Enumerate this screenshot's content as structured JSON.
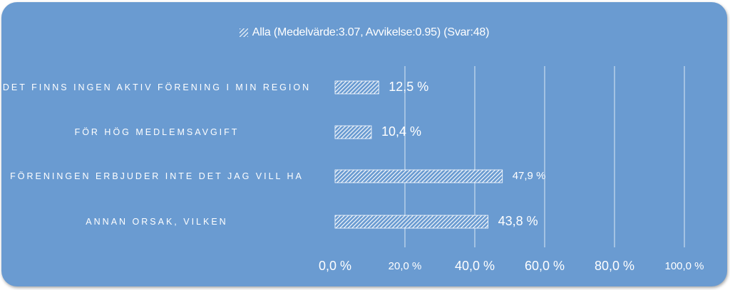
{
  "chart_data": {
    "type": "bar",
    "orientation": "horizontal",
    "categories": [
      "DET FINNS INGEN AKTIV FÖRENING I MIN REGION",
      "FÖR HÖG MEDLEMSAVGIFT",
      "FÖRENINGEN ERBJUDER INTE DET JAG VILL HA",
      "ANNAN ORSAK, VILKEN"
    ],
    "series": [
      {
        "name": "Alla (Medelvärde:3.07, Avvikelse:0.95) (Svar:48)",
        "values": [
          12.5,
          10.4,
          47.9,
          43.8
        ],
        "labels": [
          "12,5 %",
          "10,4 %",
          "47,9 %",
          "43,8 %"
        ]
      }
    ],
    "xlim": [
      0,
      100
    ],
    "ticks": [
      0,
      20,
      40,
      60,
      80,
      100
    ],
    "tick_labels": [
      "0,0 %",
      "20,0 %",
      "40,0 %",
      "60,0 %",
      "80,0 %",
      "100,0 %"
    ],
    "grid": true,
    "legend_position": "top",
    "colors": {
      "background": "#6a9bd1",
      "bar_hatch": "#ffffff",
      "gridline": "#dce8f5",
      "text": "#ffffff"
    }
  }
}
